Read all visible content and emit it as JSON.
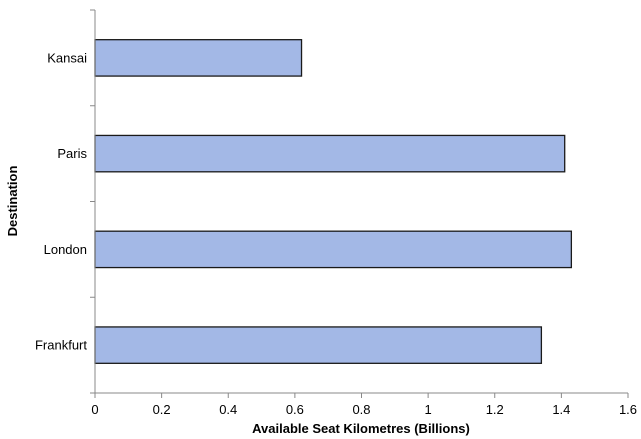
{
  "chart_data": {
    "type": "bar",
    "orientation": "horizontal",
    "categories": [
      "Frankfurt",
      "London",
      "Paris",
      "Kansai"
    ],
    "values": [
      1.34,
      1.43,
      1.41,
      0.62
    ],
    "xlabel": "Available Seat Kilometres (Billions)",
    "ylabel": "Destination",
    "xlim": [
      0,
      1.6
    ],
    "xticks": [
      "0",
      "0.2",
      "0.4",
      "0.6",
      "0.8",
      "1",
      "1.2",
      "1.4",
      "1.6"
    ],
    "grid": false,
    "legend": "none",
    "bar_color": "#a3b8e6",
    "bar_edge_color": "#1a1a1a"
  }
}
